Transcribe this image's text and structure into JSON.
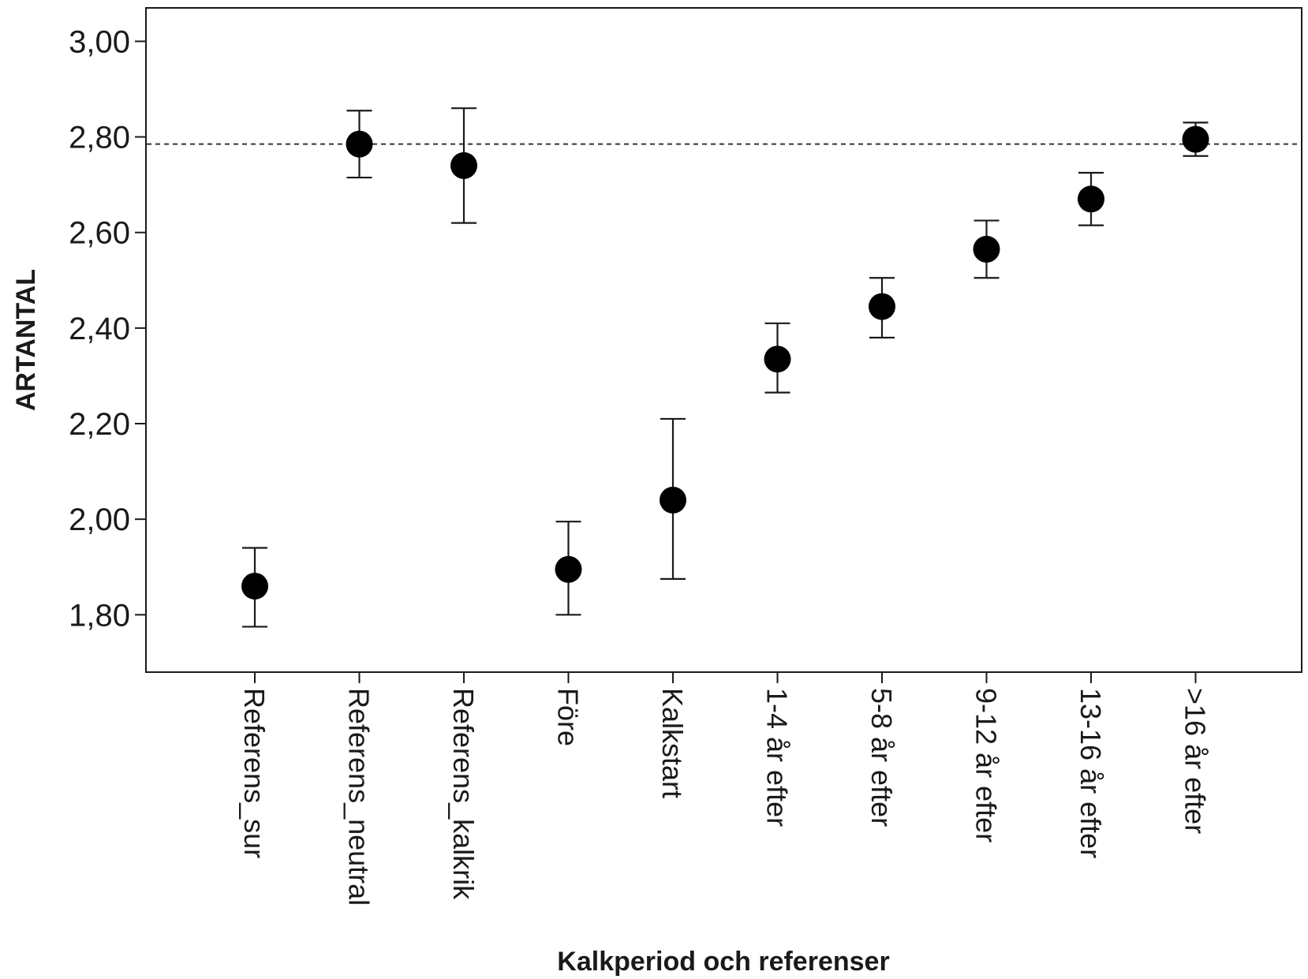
{
  "chart_data": {
    "type": "scatter",
    "subtype": "error-bar",
    "xlabel": "Kalkperiod och referenser",
    "ylabel": "ARTANTAL",
    "ylim": [
      1.68,
      3.07
    ],
    "yticks": [
      1.8,
      2.0,
      2.2,
      2.4,
      2.6,
      2.8,
      3.0
    ],
    "ytick_labels": [
      "1,80",
      "2,00",
      "2,20",
      "2,40",
      "2,60",
      "2,80",
      "3,00"
    ],
    "categories": [
      "Referens_sur",
      "Referens_neutral",
      "Referens_kalkrik",
      "Före",
      "Kalkstart",
      "1-4 år efter",
      "5-8 år efter",
      "9-12 år efter",
      "13-16 år efter",
      ">16 år efter"
    ],
    "series": [
      {
        "values": [
          1.86,
          2.785,
          2.74,
          1.895,
          2.04,
          2.335,
          2.445,
          2.565,
          2.67,
          2.795
        ],
        "lower": [
          1.775,
          2.715,
          2.62,
          1.8,
          1.875,
          2.265,
          2.38,
          2.505,
          2.615,
          2.76
        ],
        "upper": [
          1.94,
          2.855,
          2.86,
          1.995,
          2.21,
          2.41,
          2.505,
          2.625,
          2.725,
          2.83
        ]
      }
    ],
    "reference_line": {
      "y": 2.785,
      "style": "dashed"
    },
    "grid": false,
    "legend": "none",
    "colors": {
      "marker": "#000000",
      "errorbar": "#1a1a1a",
      "axis": "#1a1a1a",
      "reference": "#333333"
    }
  }
}
